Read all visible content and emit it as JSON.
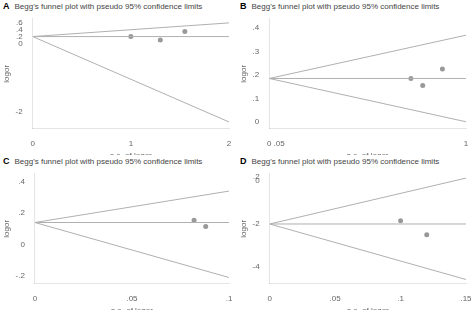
{
  "chart_data": [
    {
      "type": "scatter",
      "title": "Begg's funnel plot with pseudo 95% confidence limits",
      "annotations": [
        "A"
      ],
      "xlabel": "s.e. of logor",
      "ylabel": "logor",
      "xlim": [
        0,
        2
      ],
      "ylim": [
        -2.5,
        0.72
      ],
      "xticks": [
        0,
        1,
        2
      ],
      "yticks": [
        -2,
        0,
        {
          "value": 0.2,
          "label": ".2"
        },
        {
          "value": 0.4,
          "label": ".4"
        },
        {
          "value": 0.6,
          "label": ".6"
        }
      ],
      "grid": false,
      "series": [
        {
          "type": "line",
          "color": "#b0b0b0",
          "x": [
            0,
            2.0
          ],
          "values": [
            0.2,
            0.2
          ]
        },
        {
          "type": "line",
          "color": "#b0b0b0",
          "x": [
            0,
            2.0
          ],
          "values": [
            0.2,
            0.6
          ]
        },
        {
          "type": "line",
          "color": "#b0b0b0",
          "x": [
            0,
            2.0
          ],
          "values": [
            0.2,
            -2.3
          ]
        },
        {
          "type": "scatter",
          "color": "#999999",
          "x": [
            1.0,
            1.3,
            1.55
          ],
          "values": [
            0.2,
            0.1,
            0.35
          ]
        }
      ]
    },
    {
      "type": "scatter",
      "title": "Begg's funnel plot with pseudo 95% confidence limits",
      "annotations": [
        "B"
      ],
      "xlabel": "s.e. of logor",
      "ylabel": "logor",
      "xlim": [
        0,
        1
      ],
      "ylim": [
        -0.03,
        0.44
      ],
      "xticks": [
        0,
        {
          "value": 0.05,
          "label": ".05"
        },
        1
      ],
      "yticks": [
        0,
        {
          "value": 0.1,
          "label": ".1"
        },
        {
          "value": 0.2,
          "label": ".2"
        },
        {
          "value": 0.3,
          "label": ".3"
        },
        {
          "value": 0.4,
          "label": ".4"
        }
      ],
      "grid": false,
      "series": [
        {
          "type": "line",
          "color": "#b0b0b0",
          "x": [
            0,
            1.0
          ],
          "values": [
            0.185,
            0.185
          ]
        },
        {
          "type": "line",
          "color": "#b0b0b0",
          "x": [
            0,
            1.0
          ],
          "values": [
            0.185,
            0.37
          ]
        },
        {
          "type": "line",
          "color": "#b0b0b0",
          "x": [
            0,
            1.0
          ],
          "values": [
            0.185,
            0.0
          ]
        },
        {
          "type": "scatter",
          "color": "#999999",
          "x": [
            0.72,
            0.78,
            0.88
          ],
          "values": [
            0.185,
            0.155,
            0.225
          ]
        }
      ]
    },
    {
      "type": "scatter",
      "title": "Begg's funnel plot with pseudo 95% confidence limits",
      "annotations": [
        "C"
      ],
      "xlabel": "s.e. of logor",
      "ylabel": "logor",
      "xlim": [
        0,
        0.1
      ],
      "ylim": [
        -0.25,
        0.45
      ],
      "xticks": [
        0,
        {
          "value": 0.05,
          "label": ".05"
        },
        {
          "value": 0.1,
          "label": ".1"
        }
      ],
      "yticks": [
        {
          "value": -0.2,
          "label": "-.2"
        },
        0,
        {
          "value": 0.2,
          "label": ".2"
        },
        {
          "value": 0.4,
          "label": ".4"
        }
      ],
      "grid": false,
      "series": [
        {
          "type": "line",
          "color": "#b0b0b0",
          "x": [
            0,
            0.1
          ],
          "values": [
            0.14,
            0.14
          ]
        },
        {
          "type": "line",
          "color": "#b0b0b0",
          "x": [
            0,
            0.1
          ],
          "values": [
            0.14,
            0.34
          ]
        },
        {
          "type": "line",
          "color": "#b0b0b0",
          "x": [
            0,
            0.1
          ],
          "values": [
            0.14,
            -0.21
          ]
        },
        {
          "type": "scatter",
          "color": "#999999",
          "x": [
            0.082,
            0.088
          ],
          "values": [
            0.155,
            0.115
          ]
        }
      ]
    },
    {
      "type": "scatter",
      "title": "Begg's funnel plot with pseudo 95% confidence limits",
      "annotations": [
        "D"
      ],
      "xlabel": "s.e. of logor",
      "ylabel": "logor",
      "xlim": [
        0,
        0.15
      ],
      "ylim": [
        -4.8,
        0.35
      ],
      "xticks": [
        0,
        {
          "value": 0.05,
          "label": ".05"
        },
        {
          "value": 0.1,
          "label": ".1"
        },
        {
          "value": 0.15,
          "label": ".15"
        }
      ],
      "yticks": [
        -4,
        -2,
        0,
        {
          "value": 0.2,
          "label": ".2"
        }
      ],
      "grid": false,
      "series": [
        {
          "type": "line",
          "color": "#b0b0b0",
          "x": [
            0,
            0.15
          ],
          "values": [
            -2.0,
            -2.0
          ]
        },
        {
          "type": "line",
          "color": "#b0b0b0",
          "x": [
            0,
            0.15
          ],
          "values": [
            -2.0,
            0.15
          ]
        },
        {
          "type": "line",
          "color": "#b0b0b0",
          "x": [
            0,
            0.15
          ],
          "values": [
            -2.0,
            -4.6
          ]
        },
        {
          "type": "scatter",
          "color": "#999999",
          "x": [
            0.1,
            0.12
          ],
          "values": [
            -1.85,
            -2.5
          ]
        }
      ]
    }
  ]
}
